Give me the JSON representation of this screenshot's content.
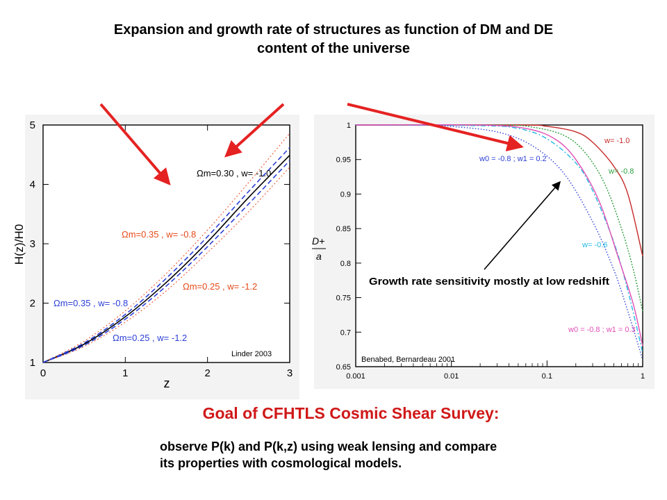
{
  "slide": {
    "title_line1": "Expansion and growth rate of structures as function of DM and DE",
    "title_line2": "content of the universe",
    "goal": "Goal of CFHTLS Cosmic Shear Survey:",
    "desc_line1": "observe P(k) and P(k,z) using weak lensing and compare",
    "desc_line2": "its properties with cosmological models."
  },
  "chart_data": [
    {
      "type": "line",
      "xlabel": "z",
      "ylabel": "H(z)/H0",
      "xlim": [
        0,
        3
      ],
      "ylim": [
        1,
        5
      ],
      "xticks": [
        0,
        1,
        2,
        3
      ],
      "yticks": [
        1,
        2,
        3,
        4,
        5
      ],
      "credit": "Linder 2003",
      "x": [
        0,
        0.5,
        1,
        1.5,
        2,
        2.5,
        3
      ],
      "series": [
        {
          "name": "Ωm=0.30 , w= -1.0",
          "label_color": "#000000",
          "values": [
            1.0,
            1.31,
            1.77,
            2.35,
            3.03,
            3.78,
            4.49
          ]
        },
        {
          "name": "Ωm=0.35 , w= -0.8",
          "label_color": "#e64a19",
          "values": [
            1.0,
            1.36,
            1.87,
            2.5,
            3.23,
            4.03,
            4.86
          ]
        },
        {
          "name": "Ωm=0.25 , w= -1.2",
          "label_color": "#e64a19",
          "values": [
            1.0,
            1.27,
            1.68,
            2.21,
            2.85,
            3.54,
            4.29
          ]
        },
        {
          "name": "Ωm=0.35 , w= -0.8",
          "label_color": "#2b3fd6",
          "values": [
            1.0,
            1.33,
            1.81,
            2.42,
            3.12,
            3.88,
            4.62
          ]
        },
        {
          "name": "Ωm=0.25 , w= -1.2",
          "label_color": "#2b3fd6",
          "values": [
            1.0,
            1.29,
            1.73,
            2.29,
            2.95,
            3.67,
            4.4
          ]
        }
      ]
    },
    {
      "type": "line",
      "xscale": "log",
      "xlim": [
        0.001,
        1
      ],
      "ylim": [
        0.65,
        1.0
      ],
      "xticks": [
        "0.001",
        "0.01",
        "0.1",
        "1"
      ],
      "yticks": [
        "0.65",
        "0.7",
        "0.75",
        "0.8",
        "0.85",
        "0.9",
        "0.95",
        "1"
      ],
      "ylabel_num": "D+",
      "ylabel_den": "a",
      "credit": "Benabed, Bernardeau 2001",
      "annotation": "Growth rate sensitivity mostly at low redshift",
      "series": [
        {
          "name": "w= -1.0",
          "color": "#c62828",
          "x": [
            0.001,
            0.05,
            0.1,
            0.2,
            0.3,
            0.5,
            0.7,
            1.0
          ],
          "values": [
            1.0,
            1.0,
            0.998,
            0.99,
            0.975,
            0.94,
            0.9,
            0.81
          ]
        },
        {
          "name": "w= -0.8",
          "color": "#2e9e3e",
          "x": [
            0.001,
            0.03,
            0.07,
            0.15,
            0.25,
            0.4,
            0.6,
            0.8,
            1.0
          ],
          "values": [
            1.0,
            1.0,
            0.997,
            0.985,
            0.96,
            0.915,
            0.85,
            0.79,
            0.73
          ]
        },
        {
          "name": "w= -0.6",
          "color": "#22b8e6",
          "x": [
            0.001,
            0.02,
            0.05,
            0.1,
            0.2,
            0.3,
            0.5,
            0.7,
            1.0
          ],
          "values": [
            1.0,
            0.999,
            0.995,
            0.98,
            0.945,
            0.905,
            0.83,
            0.76,
            0.67
          ]
        },
        {
          "name": "w0 = -0.8 ; w1 = 0.2",
          "color": "#2b3fd6",
          "x": [
            0.001,
            0.005,
            0.01,
            0.03,
            0.07,
            0.15,
            0.3,
            0.5,
            0.7,
            1.0
          ],
          "values": [
            1.0,
            1.0,
            0.998,
            0.99,
            0.97,
            0.93,
            0.86,
            0.79,
            0.73,
            0.66
          ]
        },
        {
          "name": "w0 = -0.8 ; w1 = 0.3",
          "color": "#e04fb4",
          "x": [
            0.001,
            0.02,
            0.06,
            0.12,
            0.2,
            0.35,
            0.55,
            0.8,
            1.0
          ],
          "values": [
            1.0,
            1.0,
            0.995,
            0.98,
            0.95,
            0.89,
            0.81,
            0.74,
            0.68
          ]
        }
      ]
    }
  ]
}
